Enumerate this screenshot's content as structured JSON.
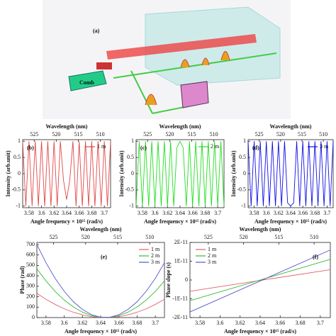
{
  "schematic": {
    "label": "(a)",
    "comb": "Comb"
  },
  "chart_data": [
    {
      "type": "line",
      "panel_label": "(b)",
      "x2_label": "Wavelength (nm)",
      "x_label": "Angle frequency × 10¹⁵ (rad/s)",
      "y_label": "Intensity (arb.unit)",
      "x": [
        3.57,
        3.575,
        3.58,
        3.585,
        3.59,
        3.595,
        3.6,
        3.605,
        3.61,
        3.615,
        3.62,
        3.625,
        3.63,
        3.635,
        3.64,
        3.645,
        3.65,
        3.655,
        3.66,
        3.665,
        3.67,
        3.675,
        3.68,
        3.685,
        3.69,
        3.695,
        3.7,
        3.705,
        3.71
      ],
      "series": [
        {
          "name": "1 m",
          "color": "#e04848",
          "values": [
            1,
            -1,
            1,
            -1,
            1,
            -1,
            1,
            -1,
            1,
            -1,
            1,
            -1,
            1,
            -0.2,
            -0.8,
            -0.2,
            1,
            -1,
            1,
            -1,
            1,
            -1,
            1,
            -1,
            1,
            -1,
            1,
            -1,
            1
          ]
        }
      ],
      "xlim": [
        3.57,
        3.71
      ],
      "xticks": [
        3.58,
        3.6,
        3.62,
        3.64,
        3.66,
        3.68,
        3.7
      ],
      "ylim": [
        -1.05,
        1.05
      ],
      "yticks": [
        -1,
        -0.5,
        0,
        0.5,
        1
      ],
      "x2lim": [
        527.6,
        507.7
      ],
      "x2ticks": [
        525,
        520,
        515,
        510
      ],
      "legend": "upper right"
    },
    {
      "type": "line",
      "panel_label": "(c)",
      "x2_label": "Wavelength (nm)",
      "x_label": "Angle frequency × 10¹⁵ (rad/s)",
      "y_label": "Intensity (arb.unit)",
      "x": [
        3.57,
        3.575,
        3.58,
        3.585,
        3.59,
        3.595,
        3.6,
        3.605,
        3.61,
        3.615,
        3.62,
        3.625,
        3.63,
        3.635,
        3.64,
        3.645,
        3.65,
        3.655,
        3.66,
        3.665,
        3.67,
        3.675,
        3.68,
        3.685,
        3.69,
        3.695,
        3.7,
        3.705,
        3.71
      ],
      "series": [
        {
          "name": "2 m",
          "color": "#22dd22",
          "values": [
            -1,
            1,
            -1,
            1,
            -1,
            1,
            -1,
            1,
            -1,
            1,
            -1,
            1,
            -1,
            0.8,
            1,
            0.8,
            -1,
            1,
            -1,
            1,
            -1,
            1,
            -1,
            1,
            -1,
            1,
            -1,
            1,
            -1
          ]
        }
      ],
      "xlim": [
        3.57,
        3.71
      ],
      "xticks": [
        3.58,
        3.6,
        3.62,
        3.64,
        3.66,
        3.68,
        3.7
      ],
      "ylim": [
        -1.05,
        1.05
      ],
      "yticks": [
        -1,
        -0.5,
        0,
        0.5,
        1
      ],
      "x2lim": [
        527.6,
        507.7
      ],
      "x2ticks": [
        525,
        520,
        515,
        510
      ],
      "legend": "upper right"
    },
    {
      "type": "line",
      "panel_label": "(d)",
      "x2_label": "Wavelength (nm)",
      "x_label": "Angle frequency × 10¹⁵ (rad/s)",
      "y_label": "Intensity (arb.unit)",
      "x": [
        3.57,
        3.575,
        3.58,
        3.585,
        3.59,
        3.595,
        3.6,
        3.605,
        3.61,
        3.615,
        3.62,
        3.625,
        3.63,
        3.635,
        3.64,
        3.645,
        3.65,
        3.655,
        3.66,
        3.665,
        3.67,
        3.675,
        3.68,
        3.685,
        3.69,
        3.695,
        3.7,
        3.705,
        3.71
      ],
      "series": [
        {
          "name": "3 m",
          "color": "#1010e8",
          "values": [
            1,
            -1,
            1,
            -1,
            1,
            -1,
            1,
            -1,
            1,
            -1,
            1,
            -1,
            1,
            -0.9,
            -1,
            -0.9,
            1,
            -1,
            1,
            -1,
            1,
            -1,
            1,
            -1,
            1,
            -1,
            1,
            -1,
            1
          ]
        }
      ],
      "xlim": [
        3.57,
        3.71
      ],
      "xticks": [
        3.58,
        3.6,
        3.62,
        3.64,
        3.66,
        3.68,
        3.7
      ],
      "ylim": [
        -1.05,
        1.05
      ],
      "yticks": [
        -1,
        -0.5,
        0,
        0.5,
        1
      ],
      "x2lim": [
        527.6,
        507.7
      ],
      "x2ticks": [
        525,
        520,
        515,
        510
      ],
      "legend": "upper right"
    },
    {
      "type": "line",
      "panel_label": "(e)",
      "x2_label": "Wavelength (nm)",
      "x_label": "Angle frequency × 10¹⁵ (rad/s)",
      "y_label": "Phase (rad)",
      "x": [
        3.57,
        3.58,
        3.59,
        3.6,
        3.61,
        3.62,
        3.63,
        3.64,
        3.65,
        3.66,
        3.67,
        3.68,
        3.69,
        3.7,
        3.71
      ],
      "series": [
        {
          "name": "1 m",
          "color": "#e06070",
          "values": [
            233,
            175,
            126,
            84,
            51,
            26,
            9,
            1,
            1,
            9,
            26,
            51,
            84,
            126,
            175
          ]
        },
        {
          "name": "2 m",
          "color": "#33bb33",
          "values": [
            467,
            351,
            251,
            168,
            102,
            52,
            19,
            2,
            2,
            19,
            52,
            102,
            168,
            251,
            351
          ]
        },
        {
          "name": "3 m",
          "color": "#5555cc",
          "values": [
            700,
            526,
            376,
            252,
            152,
            78,
            28,
            3,
            3,
            28,
            78,
            152,
            252,
            376,
            526
          ]
        }
      ],
      "xlim": [
        3.57,
        3.71
      ],
      "xticks": [
        3.58,
        3.6,
        3.62,
        3.64,
        3.66,
        3.68,
        3.7
      ],
      "ylim": [
        0,
        720
      ],
      "yticks": [
        0,
        100,
        200,
        300,
        400,
        500,
        600,
        700
      ],
      "x2lim": [
        527.6,
        507.7
      ],
      "x2ticks": [
        525,
        520,
        515,
        510
      ],
      "legend": "upper right"
    },
    {
      "type": "line",
      "panel_label": "(f)",
      "x2_label": "Wavelength (nm)",
      "x_label": "Angle frequency × 10¹⁵ (rad/s)",
      "y_label": "Phase slope (s)",
      "x": [
        3.57,
        3.71
      ],
      "series": [
        {
          "name": "1 m",
          "color": "#e06070",
          "values": [
            -6e-12,
            5.5e-12
          ]
        },
        {
          "name": "2 m",
          "color": "#33bb33",
          "values": [
            -1.1e-11,
            1.1e-11
          ]
        },
        {
          "name": "3 m",
          "color": "#5555cc",
          "values": [
            -1.7e-11,
            1.6e-11
          ]
        }
      ],
      "xlim": [
        3.57,
        3.71
      ],
      "xticks": [
        3.58,
        3.6,
        3.62,
        3.64,
        3.66,
        3.68,
        3.7
      ],
      "ylim": [
        -2e-11,
        2e-11
      ],
      "yticks": [
        {
          "value": -2e-11,
          "label": "-2E-11"
        },
        {
          "value": -1e-11,
          "label": "-1E-11"
        },
        0,
        {
          "value": 1e-11,
          "label": "1E-11"
        },
        {
          "value": 2e-11,
          "label": "2E-11"
        }
      ],
      "x2lim": [
        527.6,
        507.7
      ],
      "x2ticks": [
        525,
        520,
        515,
        510
      ],
      "legend": "upper left"
    }
  ]
}
